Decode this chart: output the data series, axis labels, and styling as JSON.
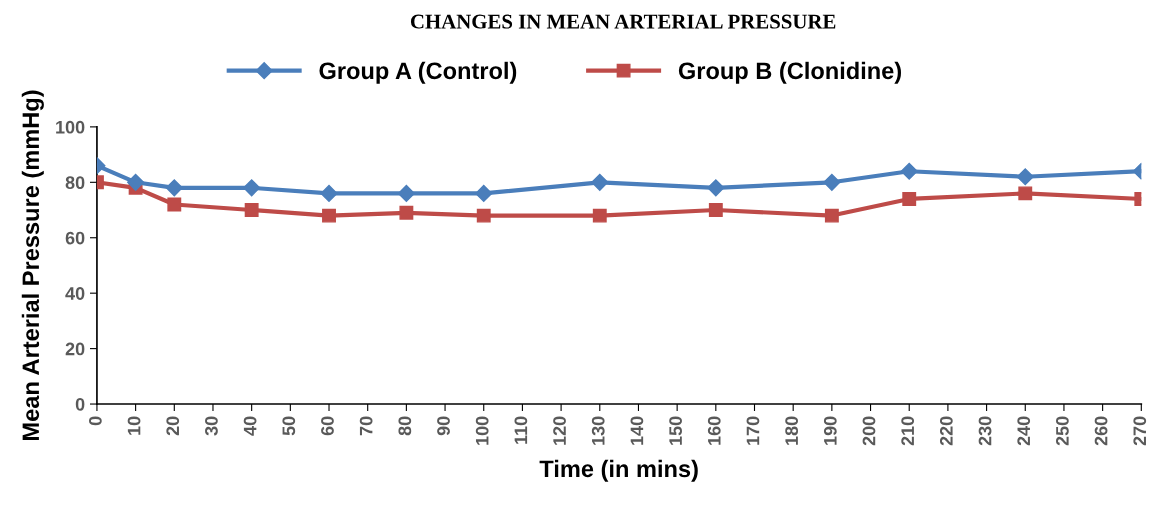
{
  "chart_data": {
    "type": "line",
    "title": "CHANGES IN MEAN ARTERIAL PRESSURE",
    "xlabel": "Time (in mins)",
    "ylabel": "Mean Arterial Pressure (mmHg)",
    "x": [
      0,
      10,
      20,
      40,
      60,
      80,
      100,
      130,
      160,
      190,
      210,
      240,
      270
    ],
    "series": [
      {
        "name": "Group A (Control)",
        "color": "#4a7ebb",
        "marker": "diamond",
        "values": [
          86,
          80,
          78,
          78,
          76,
          76,
          76,
          80,
          78,
          80,
          84,
          82,
          84
        ]
      },
      {
        "name": "Group B (Clonidine)",
        "color": "#be4b48",
        "marker": "square",
        "values": [
          80,
          78,
          72,
          70,
          68,
          69,
          68,
          68,
          70,
          68,
          74,
          76,
          74
        ]
      }
    ],
    "xlim": [
      0,
      270
    ],
    "xticks": [
      0,
      10,
      20,
      30,
      40,
      50,
      60,
      70,
      80,
      90,
      100,
      110,
      120,
      130,
      140,
      150,
      160,
      170,
      180,
      190,
      200,
      210,
      220,
      230,
      240,
      250,
      260,
      270
    ],
    "ylim": [
      0,
      100
    ],
    "yticks": [
      0,
      20,
      40,
      60,
      80,
      100
    ],
    "grid": false,
    "legend": "top",
    "line_style": "solid"
  }
}
